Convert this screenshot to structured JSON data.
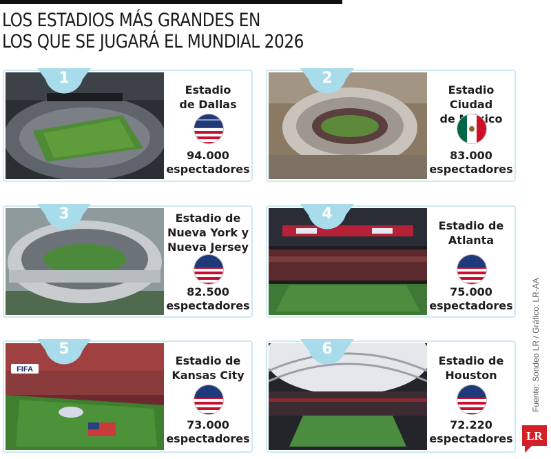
{
  "title": [
    "LOS ESTADIOS MÁS GRANDES EN",
    "LOS QUE SE JUGARÁ EL MUNDIAL 2026"
  ],
  "stadiums": [
    {
      "rank": "1",
      "name": [
        "Estadio",
        "de Dallas"
      ],
      "flag": "usa-flag-icon",
      "capacity": "94.000",
      "unit": "espectadores"
    },
    {
      "rank": "2",
      "name": [
        "Estadio Ciudad",
        "de México"
      ],
      "flag": "mexico-flag-icon",
      "capacity": "83.000",
      "unit": "espectadores"
    },
    {
      "rank": "3",
      "name": [
        "Estadio de",
        "Nueva York y",
        "Nueva Jersey"
      ],
      "flag": "usa-flag-icon",
      "capacity": "82.500",
      "unit": "espectadores"
    },
    {
      "rank": "4",
      "name": [
        "Estadio de",
        "Atlanta"
      ],
      "flag": "usa-flag-icon",
      "capacity": "75.000",
      "unit": "espectadores"
    },
    {
      "rank": "5",
      "name": [
        "Estadio de",
        "Kansas City"
      ],
      "flag": "usa-flag-icon",
      "capacity": "73.000",
      "unit": "espectadores"
    },
    {
      "rank": "6",
      "name": [
        "Estadio de",
        "Houston"
      ],
      "flag": "usa-flag-icon",
      "capacity": "72.220",
      "unit": "espectadores"
    }
  ],
  "photo_labels": {
    "fifa": "FIFA"
  },
  "source": "Fuente: Sondeo LR / Gráfico: LR-AA",
  "logo": "LR",
  "colors": {
    "badge": "#a8dcea",
    "border": "#cde9f1",
    "logo": "#d32027"
  }
}
